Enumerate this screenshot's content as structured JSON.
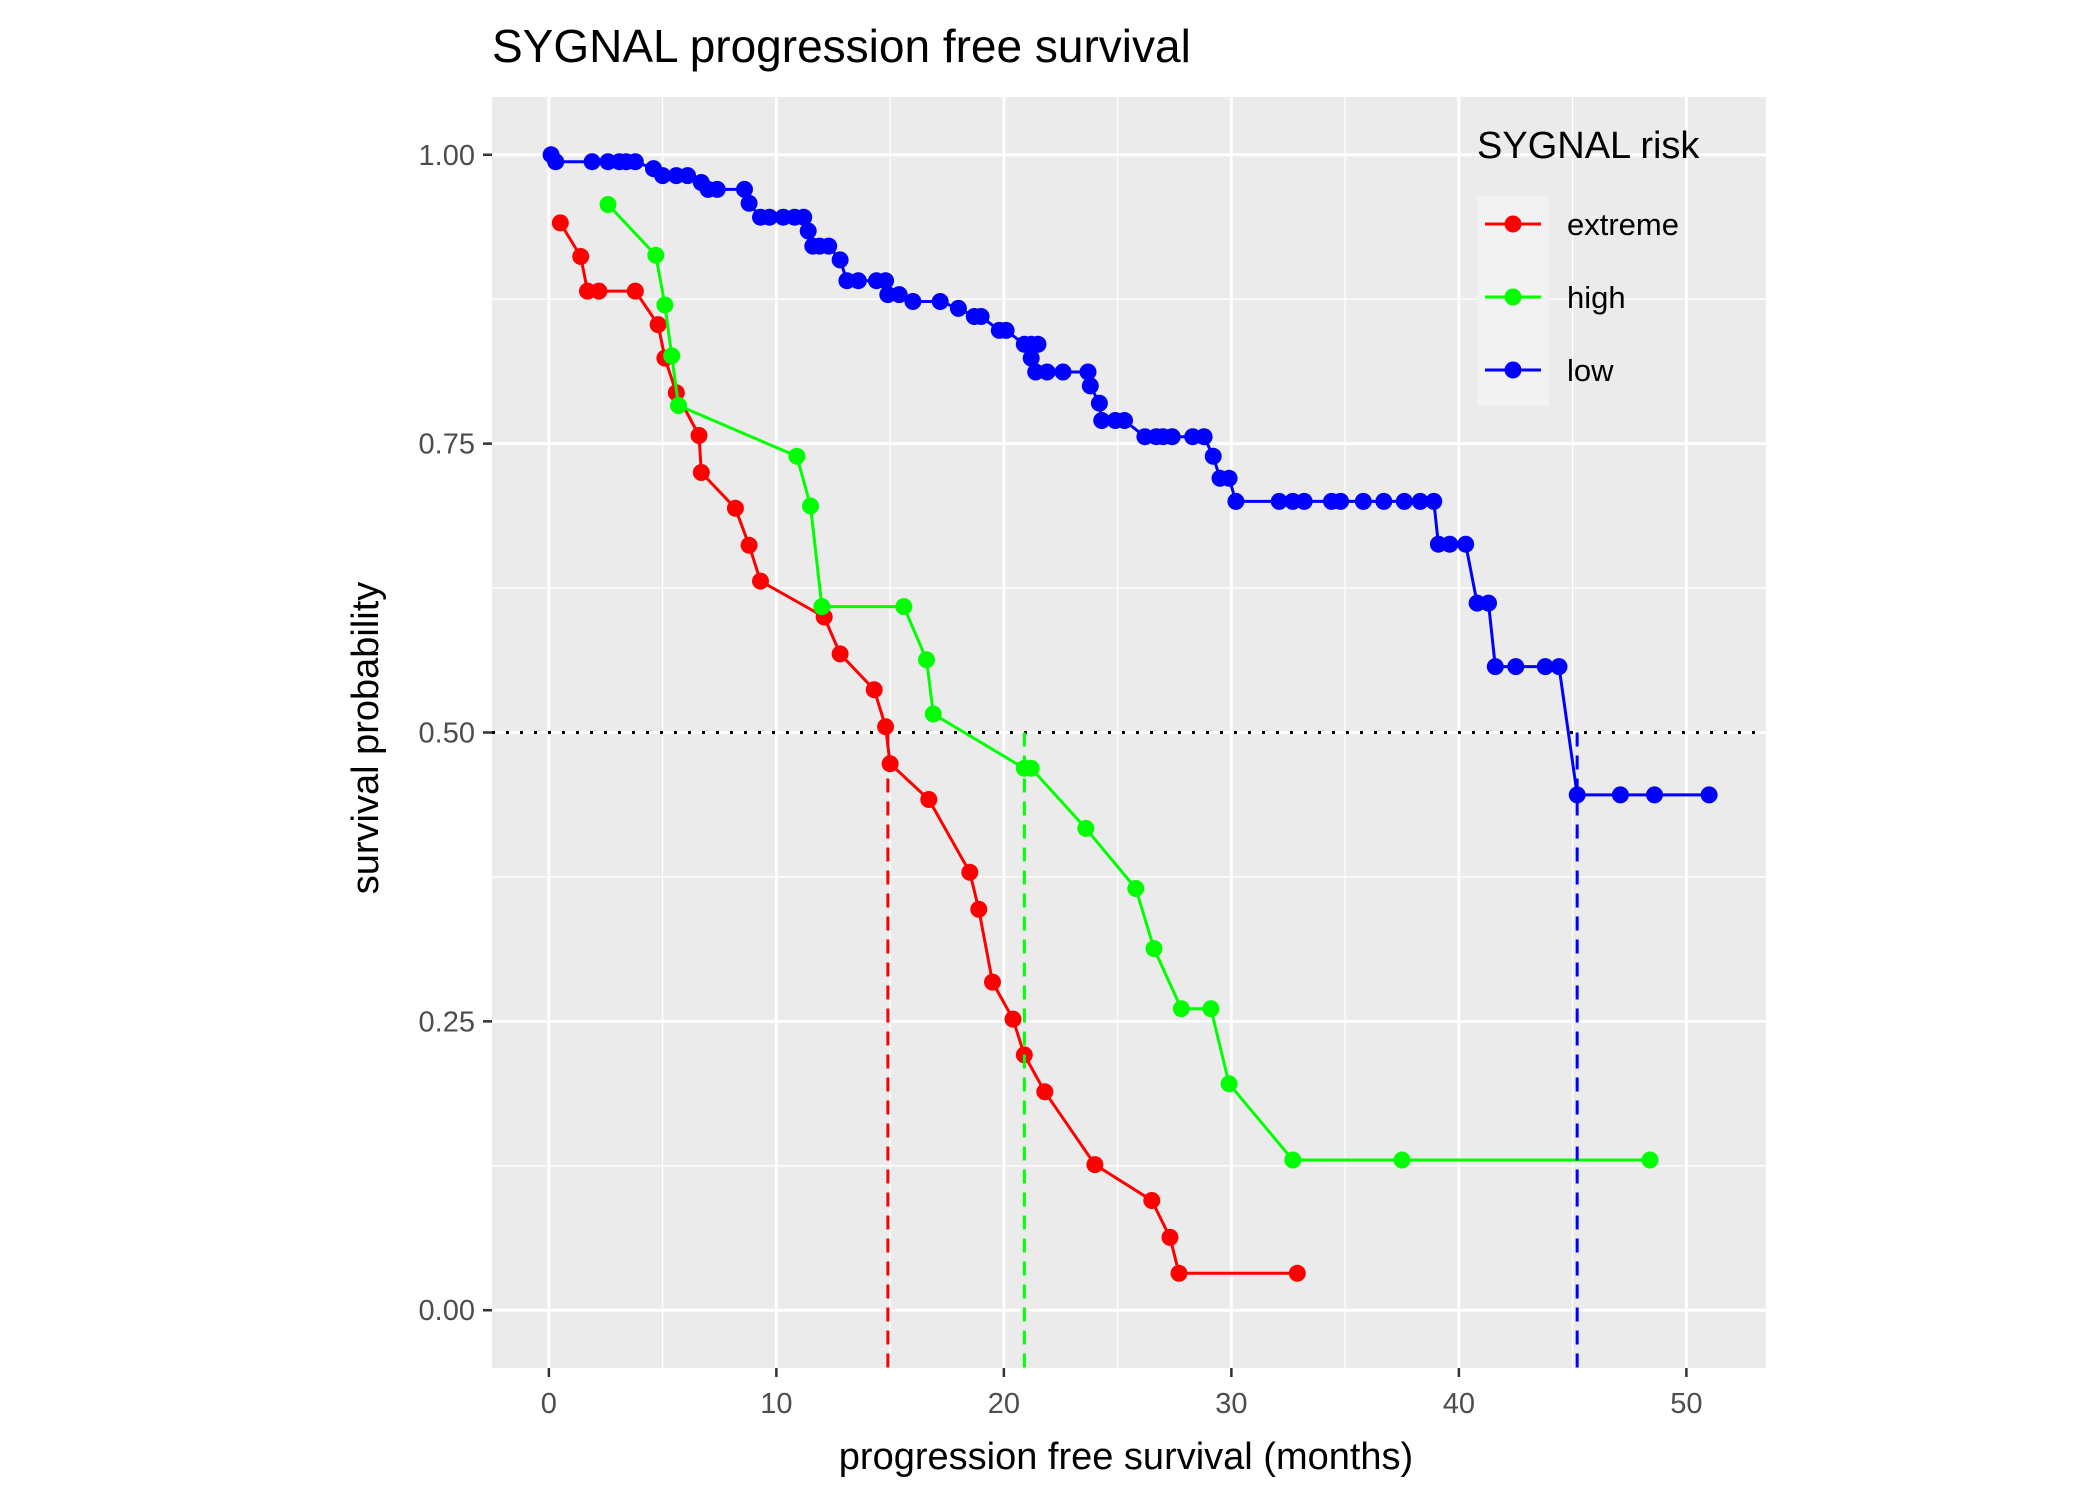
{
  "chart_data": {
    "type": "line",
    "title": "SYGNAL progression free survival",
    "xlabel": "progression free survival (months)",
    "ylabel": "survival probability",
    "xlim": [
      -2.5,
      53.5
    ],
    "ylim": [
      -0.05,
      1.05
    ],
    "x_ticks": [
      0,
      10,
      20,
      30,
      40,
      50
    ],
    "x_tick_labels": [
      "0",
      "10",
      "20",
      "30",
      "40",
      "50"
    ],
    "y_ticks": [
      0,
      0.25,
      0.5,
      0.75,
      1.0
    ],
    "y_tick_labels": [
      "0.00",
      "0.25",
      "0.50",
      "0.75",
      "1.00"
    ],
    "grid": true,
    "legend": {
      "title": "SYGNAL risk",
      "placement": "top-right"
    },
    "median_line": 0.5,
    "series": [
      {
        "name": "extreme",
        "color": "#ff0000",
        "median": 14.9,
        "points": [
          [
            0.5,
            0.941
          ],
          [
            1.4,
            0.912
          ],
          [
            1.7,
            0.882
          ],
          [
            2.2,
            0.882
          ],
          [
            3.8,
            0.882
          ],
          [
            4.8,
            0.853
          ],
          [
            5.1,
            0.824
          ],
          [
            5.6,
            0.794
          ],
          [
            6.6,
            0.757
          ],
          [
            6.7,
            0.725
          ],
          [
            8.2,
            0.694
          ],
          [
            8.8,
            0.662
          ],
          [
            9.3,
            0.631
          ],
          [
            12.1,
            0.6
          ],
          [
            12.8,
            0.568
          ],
          [
            14.3,
            0.537
          ],
          [
            14.8,
            0.505
          ],
          [
            15.0,
            0.473
          ],
          [
            16.7,
            0.442
          ],
          [
            18.5,
            0.379
          ],
          [
            18.9,
            0.347
          ],
          [
            19.5,
            0.284
          ],
          [
            20.4,
            0.252
          ],
          [
            20.9,
            0.221
          ],
          [
            21.8,
            0.189
          ],
          [
            24.0,
            0.126
          ],
          [
            26.5,
            0.095
          ],
          [
            27.3,
            0.063
          ],
          [
            27.7,
            0.032
          ],
          [
            32.9,
            0.032
          ]
        ]
      },
      {
        "name": "high",
        "color": "#00ff00",
        "median": 20.9,
        "points": [
          [
            2.6,
            0.957
          ],
          [
            4.7,
            0.913
          ],
          [
            5.1,
            0.87
          ],
          [
            5.4,
            0.826
          ],
          [
            5.7,
            0.783
          ],
          [
            10.9,
            0.739
          ],
          [
            11.5,
            0.696
          ],
          [
            12.0,
            0.609
          ],
          [
            15.6,
            0.609
          ],
          [
            16.6,
            0.563
          ],
          [
            16.9,
            0.516
          ],
          [
            20.9,
            0.469
          ],
          [
            21.2,
            0.469
          ],
          [
            23.6,
            0.417
          ],
          [
            25.8,
            0.365
          ],
          [
            26.6,
            0.313
          ],
          [
            27.8,
            0.261
          ],
          [
            29.1,
            0.261
          ],
          [
            29.9,
            0.196
          ],
          [
            32.7,
            0.13
          ],
          [
            37.5,
            0.13
          ],
          [
            48.4,
            0.13
          ]
        ]
      },
      {
        "name": "low",
        "color": "#0000ff",
        "median": 45.2,
        "points": [
          [
            0.1,
            1.0
          ],
          [
            0.3,
            0.994
          ],
          [
            1.9,
            0.994
          ],
          [
            2.6,
            0.994
          ],
          [
            3.1,
            0.994
          ],
          [
            3.4,
            0.994
          ],
          [
            3.8,
            0.994
          ],
          [
            4.6,
            0.988
          ],
          [
            5.0,
            0.982
          ],
          [
            5.6,
            0.982
          ],
          [
            6.1,
            0.982
          ],
          [
            6.7,
            0.976
          ],
          [
            7.0,
            0.97
          ],
          [
            7.4,
            0.97
          ],
          [
            8.6,
            0.97
          ],
          [
            8.8,
            0.958
          ],
          [
            9.3,
            0.946
          ],
          [
            9.7,
            0.946
          ],
          [
            10.3,
            0.946
          ],
          [
            10.8,
            0.946
          ],
          [
            11.2,
            0.946
          ],
          [
            11.4,
            0.934
          ],
          [
            11.6,
            0.921
          ],
          [
            11.9,
            0.921
          ],
          [
            12.3,
            0.921
          ],
          [
            12.8,
            0.909
          ],
          [
            13.1,
            0.891
          ],
          [
            13.6,
            0.891
          ],
          [
            14.4,
            0.891
          ],
          [
            14.8,
            0.891
          ],
          [
            14.9,
            0.879
          ],
          [
            15.4,
            0.879
          ],
          [
            16.0,
            0.873
          ],
          [
            17.2,
            0.873
          ],
          [
            18.0,
            0.867
          ],
          [
            18.7,
            0.86
          ],
          [
            19.0,
            0.86
          ],
          [
            19.8,
            0.848
          ],
          [
            20.1,
            0.848
          ],
          [
            20.9,
            0.836
          ],
          [
            21.2,
            0.836
          ],
          [
            21.5,
            0.836
          ],
          [
            21.2,
            0.824
          ],
          [
            21.4,
            0.812
          ],
          [
            21.9,
            0.812
          ],
          [
            22.6,
            0.812
          ],
          [
            23.7,
            0.812
          ],
          [
            23.8,
            0.8
          ],
          [
            24.2,
            0.785
          ],
          [
            24.3,
            0.77
          ],
          [
            24.9,
            0.77
          ],
          [
            25.3,
            0.77
          ],
          [
            26.2,
            0.756
          ],
          [
            26.7,
            0.756
          ],
          [
            27.0,
            0.756
          ],
          [
            27.4,
            0.756
          ],
          [
            28.3,
            0.756
          ],
          [
            28.8,
            0.756
          ],
          [
            29.2,
            0.739
          ],
          [
            29.5,
            0.72
          ],
          [
            29.9,
            0.72
          ],
          [
            30.2,
            0.7
          ],
          [
            32.1,
            0.7
          ],
          [
            32.7,
            0.7
          ],
          [
            33.2,
            0.7
          ],
          [
            34.4,
            0.7
          ],
          [
            34.8,
            0.7
          ],
          [
            35.8,
            0.7
          ],
          [
            36.7,
            0.7
          ],
          [
            37.6,
            0.7
          ],
          [
            38.3,
            0.7
          ],
          [
            38.9,
            0.7
          ],
          [
            39.1,
            0.663
          ],
          [
            39.6,
            0.663
          ],
          [
            40.3,
            0.663
          ],
          [
            40.8,
            0.612
          ],
          [
            41.3,
            0.612
          ],
          [
            41.6,
            0.557
          ],
          [
            42.5,
            0.557
          ],
          [
            43.8,
            0.557
          ],
          [
            44.4,
            0.557
          ],
          [
            45.2,
            0.446
          ],
          [
            47.1,
            0.446
          ],
          [
            48.6,
            0.446
          ],
          [
            51.0,
            0.446
          ]
        ]
      }
    ]
  }
}
